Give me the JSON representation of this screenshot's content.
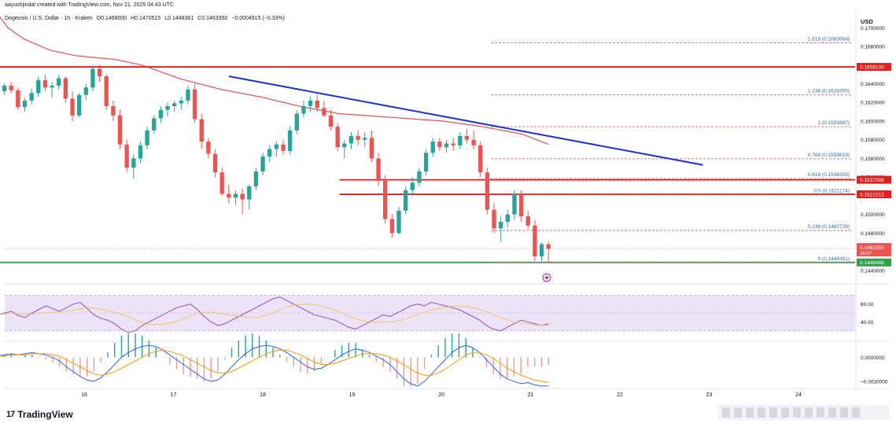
{
  "header": {
    "created_by": "aayushjindal created with TradingView.com, Nov 21, 2025 04:43 UTC",
    "symbol": "Dogecoin / U.S. Dollar · 1h · Kraken",
    "open": "O0.1468000",
    "high": "H0.1470515",
    "low": "L0.1448361",
    "close": "C0.1463350",
    "change": "−0.0004915 (−0.33%)"
  },
  "branding": {
    "name": "TradingView",
    "logo": "17"
  },
  "colors": {
    "up": "#26a69a",
    "down": "#ef5350",
    "trendline": "#2134c9",
    "ma": "#e05252",
    "support": "#4caf50",
    "rsi": "#8e4ec6",
    "rsi_band": "#ede3f7",
    "macd": "#2962ff",
    "signal": "#ff9800",
    "fib": "#e05252"
  },
  "chart_data": {
    "type": "candlestick",
    "title": "Dogecoin / U.S. Dollar · 1h · Kraken",
    "currency_label": "USD",
    "ylim": [
      0.1428,
      0.1718
    ],
    "price_ticks": [
      "0.1700000",
      "0.1680000",
      "0.1660000",
      "0.1640000",
      "0.1620000",
      "0.1600000",
      "0.1580000",
      "0.1560000",
      "0.1540000",
      "0.1520000",
      "0.1500000",
      "0.1480000",
      "0.1460000",
      "0.1440000"
    ],
    "price_tick_values": [
      0.17,
      0.168,
      0.166,
      0.164,
      0.162,
      0.16,
      0.158,
      0.156,
      0.154,
      0.152,
      0.15,
      0.148,
      0.146,
      0.144
    ],
    "x_labels": [
      "16",
      "17",
      "18",
      "19",
      "20",
      "21",
      "22",
      "23",
      "24"
    ],
    "x_label_day": [
      16,
      17,
      18,
      19,
      20,
      21,
      22,
      23,
      24
    ],
    "x_start_day": 15.03,
    "candles": [
      [
        0.163,
        0.1637,
        0.1626,
        0.1632
      ],
      [
        0.1632,
        0.164,
        0.1628,
        0.1638
      ],
      [
        0.1638,
        0.1642,
        0.163,
        0.1633
      ],
      [
        0.1633,
        0.1636,
        0.1612,
        0.1615
      ],
      [
        0.1615,
        0.1625,
        0.161,
        0.1622
      ],
      [
        0.1622,
        0.1635,
        0.1618,
        0.163
      ],
      [
        0.163,
        0.1648,
        0.1626,
        0.1644
      ],
      [
        0.1644,
        0.165,
        0.1632,
        0.1636
      ],
      [
        0.1636,
        0.1642,
        0.1625,
        0.1638
      ],
      [
        0.1638,
        0.165,
        0.1634,
        0.1646
      ],
      [
        0.1646,
        0.1648,
        0.162,
        0.1624
      ],
      [
        0.1624,
        0.1632,
        0.16,
        0.1606
      ],
      [
        0.1606,
        0.163,
        0.1604,
        0.1628
      ],
      [
        0.1628,
        0.164,
        0.1622,
        0.1636
      ],
      [
        0.1636,
        0.166,
        0.1632,
        0.1656
      ],
      [
        0.1656,
        0.166,
        0.1642,
        0.1648
      ],
      [
        0.1648,
        0.165,
        0.1612,
        0.1616
      ],
      [
        0.1616,
        0.1622,
        0.16,
        0.1606
      ],
      [
        0.1606,
        0.1612,
        0.157,
        0.1575
      ],
      [
        0.1575,
        0.158,
        0.1545,
        0.155
      ],
      [
        0.155,
        0.1565,
        0.1538,
        0.156
      ],
      [
        0.156,
        0.1578,
        0.1555,
        0.1574
      ],
      [
        0.1574,
        0.1594,
        0.157,
        0.159
      ],
      [
        0.159,
        0.1606,
        0.1586,
        0.1603
      ],
      [
        0.1603,
        0.1616,
        0.1598,
        0.1612
      ],
      [
        0.1612,
        0.162,
        0.1605,
        0.1616
      ],
      [
        0.1616,
        0.1622,
        0.161,
        0.1619
      ],
      [
        0.1619,
        0.1626,
        0.1612,
        0.1622
      ],
      [
        0.1622,
        0.1638,
        0.1618,
        0.1634
      ],
      [
        0.1634,
        0.164,
        0.1598,
        0.1602
      ],
      [
        0.1602,
        0.1608,
        0.157,
        0.1578
      ],
      [
        0.1578,
        0.1582,
        0.156,
        0.1565
      ],
      [
        0.1565,
        0.157,
        0.154,
        0.1545
      ],
      [
        0.1545,
        0.155,
        0.152,
        0.1522
      ],
      [
        0.1522,
        0.1532,
        0.1512,
        0.1518
      ],
      [
        0.1518,
        0.1526,
        0.151,
        0.1522
      ],
      [
        0.1522,
        0.1528,
        0.15,
        0.1516
      ],
      [
        0.1516,
        0.1532,
        0.1505,
        0.153
      ],
      [
        0.153,
        0.155,
        0.1526,
        0.1546
      ],
      [
        0.1546,
        0.1566,
        0.1542,
        0.1562
      ],
      [
        0.1562,
        0.1574,
        0.1556,
        0.157
      ],
      [
        0.157,
        0.1578,
        0.1562,
        0.1575
      ],
      [
        0.1575,
        0.158,
        0.1564,
        0.1568
      ],
      [
        0.1568,
        0.1595,
        0.1564,
        0.159
      ],
      [
        0.159,
        0.1612,
        0.1586,
        0.1608
      ],
      [
        0.1608,
        0.1622,
        0.1604,
        0.1616
      ],
      [
        0.1616,
        0.1626,
        0.161,
        0.1622
      ],
      [
        0.1622,
        0.1628,
        0.161,
        0.1614
      ],
      [
        0.1614,
        0.1622,
        0.1604,
        0.1606
      ],
      [
        0.1606,
        0.1612,
        0.159,
        0.1594
      ],
      [
        0.1594,
        0.1598,
        0.1568,
        0.1572
      ],
      [
        0.1572,
        0.158,
        0.156,
        0.1576
      ],
      [
        0.1576,
        0.1588,
        0.157,
        0.1584
      ],
      [
        0.1584,
        0.159,
        0.1574,
        0.158
      ],
      [
        0.158,
        0.1588,
        0.1572,
        0.1582
      ],
      [
        0.1582,
        0.159,
        0.1556,
        0.156
      ],
      [
        0.156,
        0.1566,
        0.153,
        0.1536
      ],
      [
        0.1536,
        0.1542,
        0.149,
        0.1495
      ],
      [
        0.1495,
        0.15,
        0.1475,
        0.148
      ],
      [
        0.148,
        0.1508,
        0.1478,
        0.1504
      ],
      [
        0.1504,
        0.153,
        0.15,
        0.1526
      ],
      [
        0.1526,
        0.154,
        0.152,
        0.1534
      ],
      [
        0.1534,
        0.155,
        0.153,
        0.1546
      ],
      [
        0.1546,
        0.157,
        0.1542,
        0.1566
      ],
      [
        0.1566,
        0.1582,
        0.1562,
        0.1578
      ],
      [
        0.1578,
        0.1582,
        0.1568,
        0.1572
      ],
      [
        0.1572,
        0.158,
        0.1566,
        0.1576
      ],
      [
        0.1576,
        0.1582,
        0.1568,
        0.1574
      ],
      [
        0.1574,
        0.1588,
        0.157,
        0.1584
      ],
      [
        0.1584,
        0.1592,
        0.1576,
        0.158
      ],
      [
        0.158,
        0.159,
        0.157,
        0.1574
      ],
      [
        0.1574,
        0.1578,
        0.154,
        0.1545
      ],
      [
        0.1545,
        0.155,
        0.15,
        0.1505
      ],
      [
        0.1505,
        0.1512,
        0.148,
        0.1485
      ],
      [
        0.1485,
        0.1498,
        0.147,
        0.1492
      ],
      [
        0.1492,
        0.1505,
        0.1486,
        0.15
      ],
      [
        0.15,
        0.1526,
        0.1494,
        0.1522
      ],
      [
        0.1522,
        0.1526,
        0.1492,
        0.1498
      ],
      [
        0.1498,
        0.1504,
        0.1484,
        0.1488
      ],
      [
        0.1488,
        0.1494,
        0.145,
        0.1455
      ],
      [
        0.1455,
        0.147,
        0.145,
        0.1468
      ],
      [
        0.1468,
        0.1471,
        0.1448,
        0.1463
      ]
    ],
    "moving_average": [
      [
        0.1715,
        0.0
      ],
      [
        0.17,
        0.04
      ],
      [
        0.1688,
        0.1
      ],
      [
        0.1676,
        0.2
      ],
      [
        0.167,
        0.3
      ],
      [
        0.1666,
        0.45
      ],
      [
        0.166,
        0.55
      ],
      [
        0.1645,
        0.7
      ],
      [
        0.1634,
        0.85
      ],
      [
        0.1626,
        1.0
      ],
      [
        0.1616,
        1.15
      ],
      [
        0.1608,
        1.3
      ],
      [
        0.1606,
        1.4
      ],
      [
        0.1604,
        1.5
      ],
      [
        0.1602,
        1.6
      ],
      [
        0.16,
        1.7
      ],
      [
        0.1594,
        1.85
      ],
      [
        0.1586,
        2.0
      ],
      [
        0.1575,
        2.1
      ]
    ],
    "trendline": {
      "from_day": 17.62,
      "from_price": 0.1648,
      "to_day": 22.93,
      "to_price": 0.1553
    },
    "horizontal_levels": [
      {
        "value": 0.16581,
        "label": "0.1658100",
        "color": "#e01f1f",
        "from_day": 15.03
      },
      {
        "value": 0.1537088,
        "label": "0.1537088",
        "color": "#e01f1f",
        "from_day": 18.86
      },
      {
        "value": 0.1521512,
        "label": "0.1521512",
        "color": "#e01f1f",
        "from_day": 18.86
      },
      {
        "value": 0.1448488,
        "label": "0.1448488",
        "color": "#2e9e48",
        "from_day": 15.03
      }
    ],
    "fib_levels": [
      {
        "label": "1.618 (0.1683984)",
        "value": 0.1683984
      },
      {
        "label": "1.236 (0.1628355)",
        "value": 0.1628355
      },
      {
        "label": "1 (0.1593987)",
        "value": 0.1593987
      },
      {
        "label": "0.764 (0.1559619)",
        "value": 0.1559619
      },
      {
        "label": "0.618 (0.1538358)",
        "value": 0.1538358
      },
      {
        "label": "0.5 (0.1521174)",
        "value": 0.1521174
      },
      {
        "label": "0.236 (0.1482729)",
        "value": 0.1482729
      },
      {
        "label": "0 (0.1448361)",
        "value": 0.1448361
      }
    ],
    "current_price": {
      "label": "0.1463350",
      "countdown": "16:07",
      "value": 0.146335
    },
    "rsi": {
      "ylim": [
        20,
        80
      ],
      "band": [
        30,
        70
      ],
      "ticks": [
        "60.00",
        "40.00"
      ],
      "tick_values": [
        60,
        40
      ],
      "values": [
        48,
        50,
        52,
        47,
        45,
        50,
        54,
        58,
        55,
        52,
        56,
        60,
        62,
        55,
        48,
        44,
        42,
        38,
        32,
        28,
        30,
        36,
        40,
        44,
        48,
        52,
        56,
        58,
        60,
        54,
        46,
        40,
        36,
        38,
        42,
        46,
        50,
        54,
        58,
        62,
        66,
        68,
        64,
        60,
        56,
        52,
        48,
        46,
        44,
        42,
        38,
        34,
        32,
        36,
        40,
        44,
        48,
        46,
        50,
        54,
        58,
        60,
        58,
        62,
        60,
        58,
        56,
        54,
        50,
        46,
        42,
        36,
        32,
        30,
        34,
        38,
        42,
        40,
        38,
        36,
        38
      ]
    },
    "macd": {
      "ylim": [
        -0.0026,
        0.0012
      ],
      "ticks": [
        "0.0000000",
        "−0.0020000"
      ],
      "tick_values": [
        0.0,
        -0.002
      ],
      "macd": [
        0.0001,
        0.0002,
        0.0003,
        0.0002,
        0.0003,
        0.0004,
        0.0003,
        0.0002,
        0.0,
        -0.0003,
        -0.0008,
        -0.0012,
        -0.0016,
        -0.0019,
        -0.002,
        -0.0017,
        -0.0012,
        -0.0006,
        0.0,
        0.0004,
        0.0007,
        0.0009,
        0.001,
        0.0009,
        0.0006,
        0.0002,
        -0.0002,
        -0.0006,
        -0.001,
        -0.0014,
        -0.0018,
        -0.002,
        -0.0019,
        -0.0014,
        -0.0008,
        -0.0002,
        0.0003,
        0.0007,
        0.0009,
        0.001,
        0.0009,
        0.0007,
        0.0004,
        0.0,
        -0.0004,
        -0.0008,
        -0.001,
        -0.0009,
        -0.0006,
        -0.0002,
        0.0002,
        0.0005,
        0.0007,
        0.0006,
        0.0004,
        0.0001,
        -0.0002,
        -0.0006,
        -0.0012,
        -0.0018,
        -0.0022,
        -0.0024,
        -0.002,
        -0.0014,
        -0.0008,
        -0.0002,
        0.0004,
        0.0008,
        0.001,
        0.0008,
        0.0004,
        -0.0002,
        -0.0008,
        -0.0014,
        -0.0018,
        -0.002,
        -0.0022,
        -0.0021,
        -0.0023,
        -0.0024,
        -0.0024
      ],
      "signal": [
        0.0001,
        0.0001,
        0.0002,
        0.0002,
        0.0002,
        0.0003,
        0.0003,
        0.0003,
        0.0002,
        0.0001,
        -0.0002,
        -0.0005,
        -0.0008,
        -0.0011,
        -0.0014,
        -0.0015,
        -0.0014,
        -0.0012,
        -0.0009,
        -0.0006,
        -0.0003,
        0.0,
        0.0003,
        0.0005,
        0.0006,
        0.0005,
        0.0003,
        0.0001,
        -0.0002,
        -0.0005,
        -0.0008,
        -0.0011,
        -0.0013,
        -0.0013,
        -0.0012,
        -0.0009,
        -0.0006,
        -0.0003,
        0.0,
        0.0003,
        0.0005,
        0.0006,
        0.0006,
        0.0004,
        0.0002,
        -0.0001,
        -0.0004,
        -0.0006,
        -0.0006,
        -0.0005,
        -0.0003,
        -0.0001,
        0.0001,
        0.0003,
        0.0003,
        0.0003,
        0.0002,
        0.0,
        -0.0003,
        -0.0006,
        -0.001,
        -0.0013,
        -0.0015,
        -0.0015,
        -0.0013,
        -0.001,
        -0.0006,
        -0.0002,
        0.0002,
        0.0004,
        0.0004,
        0.0002,
        -0.0001,
        -0.0005,
        -0.0009,
        -0.0012,
        -0.0015,
        -0.0017,
        -0.0019,
        -0.002,
        -0.0021
      ]
    }
  }
}
